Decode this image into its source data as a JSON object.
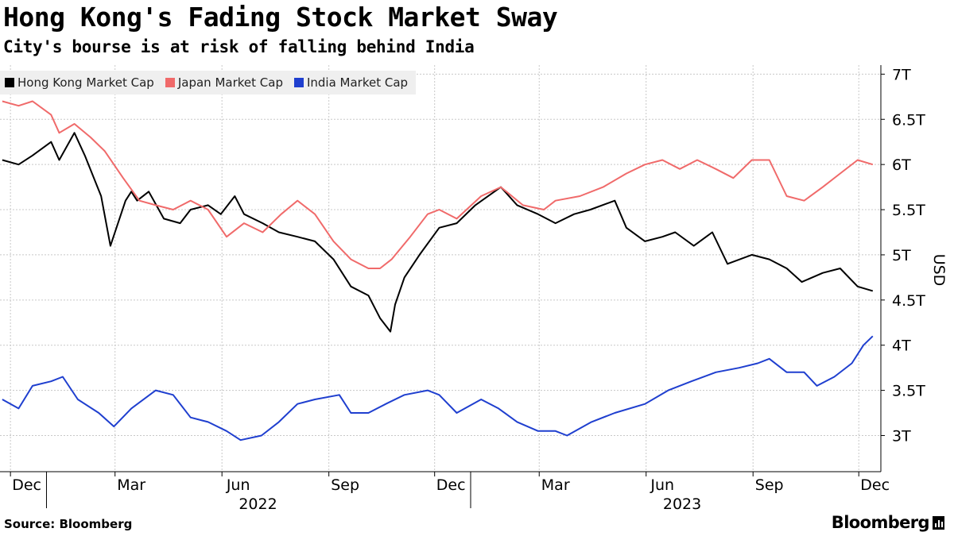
{
  "title": "Hong Kong's Fading Stock Market Sway",
  "subtitle": "City's bourse is at risk of falling behind India",
  "source": "Source: Bloomberg",
  "brand": "Bloomberg",
  "chart_data": {
    "type": "line",
    "ylabel": "USD",
    "ylim": [
      2.6,
      7.1
    ],
    "yticks": [
      3,
      3.5,
      4,
      4.5,
      5,
      5.5,
      6,
      6.5,
      7
    ],
    "ytick_labels": [
      "3T",
      "3.5T",
      "4T",
      "4.5T",
      "5T",
      "5.5T",
      "6T",
      "6.5T",
      "7T"
    ],
    "x_months": [
      "Dec",
      "Mar",
      "Jun",
      "Sep",
      "Dec",
      "Mar",
      "Jun",
      "Sep",
      "Dec"
    ],
    "x_years": [
      "2022",
      "2023"
    ],
    "xlim": [
      "2021-11-22",
      "2023-12-20"
    ],
    "grid": true,
    "legend_position": "top-left",
    "series": [
      {
        "name": "Hong Kong Market Cap",
        "color": "#000000",
        "x": [
          "2021-11-24",
          "2021-12-08",
          "2021-12-20",
          "2022-01-05",
          "2022-01-12",
          "2022-01-25",
          "2022-02-03",
          "2022-02-17",
          "2022-02-25",
          "2022-03-10",
          "2022-03-15",
          "2022-03-20",
          "2022-03-30",
          "2022-04-12",
          "2022-04-26",
          "2022-05-05",
          "2022-05-20",
          "2022-05-31",
          "2022-06-12",
          "2022-06-20",
          "2022-07-06",
          "2022-07-20",
          "2022-08-05",
          "2022-08-20",
          "2022-09-05",
          "2022-09-20",
          "2022-10-05",
          "2022-10-15",
          "2022-10-24",
          "2022-10-28",
          "2022-11-05",
          "2022-11-18",
          "2022-12-05",
          "2022-12-20",
          "2023-01-05",
          "2023-01-27",
          "2023-02-10",
          "2023-02-28",
          "2023-03-15",
          "2023-03-31",
          "2023-04-14",
          "2023-05-05",
          "2023-05-15",
          "2023-05-31",
          "2023-06-15",
          "2023-06-26",
          "2023-07-12",
          "2023-07-28",
          "2023-08-10",
          "2023-08-31",
          "2023-09-15",
          "2023-09-30",
          "2023-10-13",
          "2023-10-31",
          "2023-11-15",
          "2023-11-30",
          "2023-12-13"
        ],
        "values": [
          6.05,
          6.0,
          6.1,
          6.25,
          6.05,
          6.35,
          6.1,
          5.65,
          5.1,
          5.6,
          5.7,
          5.6,
          5.7,
          5.4,
          5.35,
          5.5,
          5.55,
          5.45,
          5.65,
          5.45,
          5.35,
          5.25,
          5.2,
          5.15,
          4.95,
          4.65,
          4.55,
          4.3,
          4.15,
          4.45,
          4.75,
          5.0,
          5.3,
          5.35,
          5.55,
          5.75,
          5.55,
          5.45,
          5.35,
          5.45,
          5.5,
          5.6,
          5.3,
          5.15,
          5.2,
          5.25,
          5.1,
          5.25,
          4.9,
          5.0,
          4.95,
          4.85,
          4.7,
          4.8,
          4.85,
          4.65,
          4.6
        ]
      },
      {
        "name": "Japan Market Cap",
        "color": "#f06a6a",
        "x": [
          "2021-11-24",
          "2021-12-08",
          "2021-12-20",
          "2022-01-05",
          "2022-01-12",
          "2022-01-25",
          "2022-02-08",
          "2022-02-20",
          "2022-03-08",
          "2022-03-22",
          "2022-04-05",
          "2022-04-20",
          "2022-05-05",
          "2022-05-20",
          "2022-06-05",
          "2022-06-20",
          "2022-07-06",
          "2022-07-22",
          "2022-08-05",
          "2022-08-20",
          "2022-09-05",
          "2022-09-20",
          "2022-10-05",
          "2022-10-15",
          "2022-10-25",
          "2022-11-10",
          "2022-11-25",
          "2022-12-05",
          "2022-12-20",
          "2023-01-10",
          "2023-01-27",
          "2023-02-15",
          "2023-03-05",
          "2023-03-15",
          "2023-04-05",
          "2023-04-25",
          "2023-05-15",
          "2023-05-31",
          "2023-06-15",
          "2023-06-30",
          "2023-07-15",
          "2023-07-31",
          "2023-08-15",
          "2023-08-31",
          "2023-09-15",
          "2023-09-30",
          "2023-10-15",
          "2023-10-31",
          "2023-11-15",
          "2023-11-30",
          "2023-12-13"
        ],
        "values": [
          6.7,
          6.65,
          6.7,
          6.55,
          6.35,
          6.45,
          6.3,
          6.15,
          5.85,
          5.6,
          5.55,
          5.5,
          5.6,
          5.5,
          5.2,
          5.35,
          5.25,
          5.45,
          5.6,
          5.45,
          5.15,
          4.95,
          4.85,
          4.85,
          4.95,
          5.2,
          5.45,
          5.5,
          5.4,
          5.65,
          5.75,
          5.55,
          5.5,
          5.6,
          5.65,
          5.75,
          5.9,
          6.0,
          6.05,
          5.95,
          6.05,
          5.95,
          5.85,
          6.05,
          6.05,
          5.65,
          5.6,
          5.75,
          5.9,
          6.05,
          6.0
        ]
      },
      {
        "name": "India Market Cap",
        "color": "#1f3fcf",
        "x": [
          "2021-11-24",
          "2021-12-08",
          "2021-12-20",
          "2022-01-05",
          "2022-01-15",
          "2022-01-28",
          "2022-02-15",
          "2022-02-28",
          "2022-03-15",
          "2022-04-05",
          "2022-04-20",
          "2022-05-05",
          "2022-05-20",
          "2022-06-05",
          "2022-06-17",
          "2022-07-05",
          "2022-07-20",
          "2022-08-05",
          "2022-08-20",
          "2022-09-10",
          "2022-09-20",
          "2022-10-05",
          "2022-10-20",
          "2022-11-05",
          "2022-11-25",
          "2022-12-05",
          "2022-12-20",
          "2023-01-10",
          "2023-01-25",
          "2023-02-10",
          "2023-02-28",
          "2023-03-15",
          "2023-03-25",
          "2023-04-15",
          "2023-05-05",
          "2023-05-31",
          "2023-06-20",
          "2023-07-10",
          "2023-07-31",
          "2023-08-20",
          "2023-09-05",
          "2023-09-15",
          "2023-09-30",
          "2023-10-15",
          "2023-10-26",
          "2023-11-10",
          "2023-11-25",
          "2023-12-05",
          "2023-12-13"
        ],
        "values": [
          3.4,
          3.3,
          3.55,
          3.6,
          3.65,
          3.4,
          3.25,
          3.1,
          3.3,
          3.5,
          3.45,
          3.2,
          3.15,
          3.05,
          2.95,
          3.0,
          3.15,
          3.35,
          3.4,
          3.45,
          3.25,
          3.25,
          3.35,
          3.45,
          3.5,
          3.45,
          3.25,
          3.4,
          3.3,
          3.15,
          3.05,
          3.05,
          3.0,
          3.15,
          3.25,
          3.35,
          3.5,
          3.6,
          3.7,
          3.75,
          3.8,
          3.85,
          3.7,
          3.7,
          3.55,
          3.65,
          3.8,
          4.0,
          4.1
        ]
      }
    ]
  }
}
